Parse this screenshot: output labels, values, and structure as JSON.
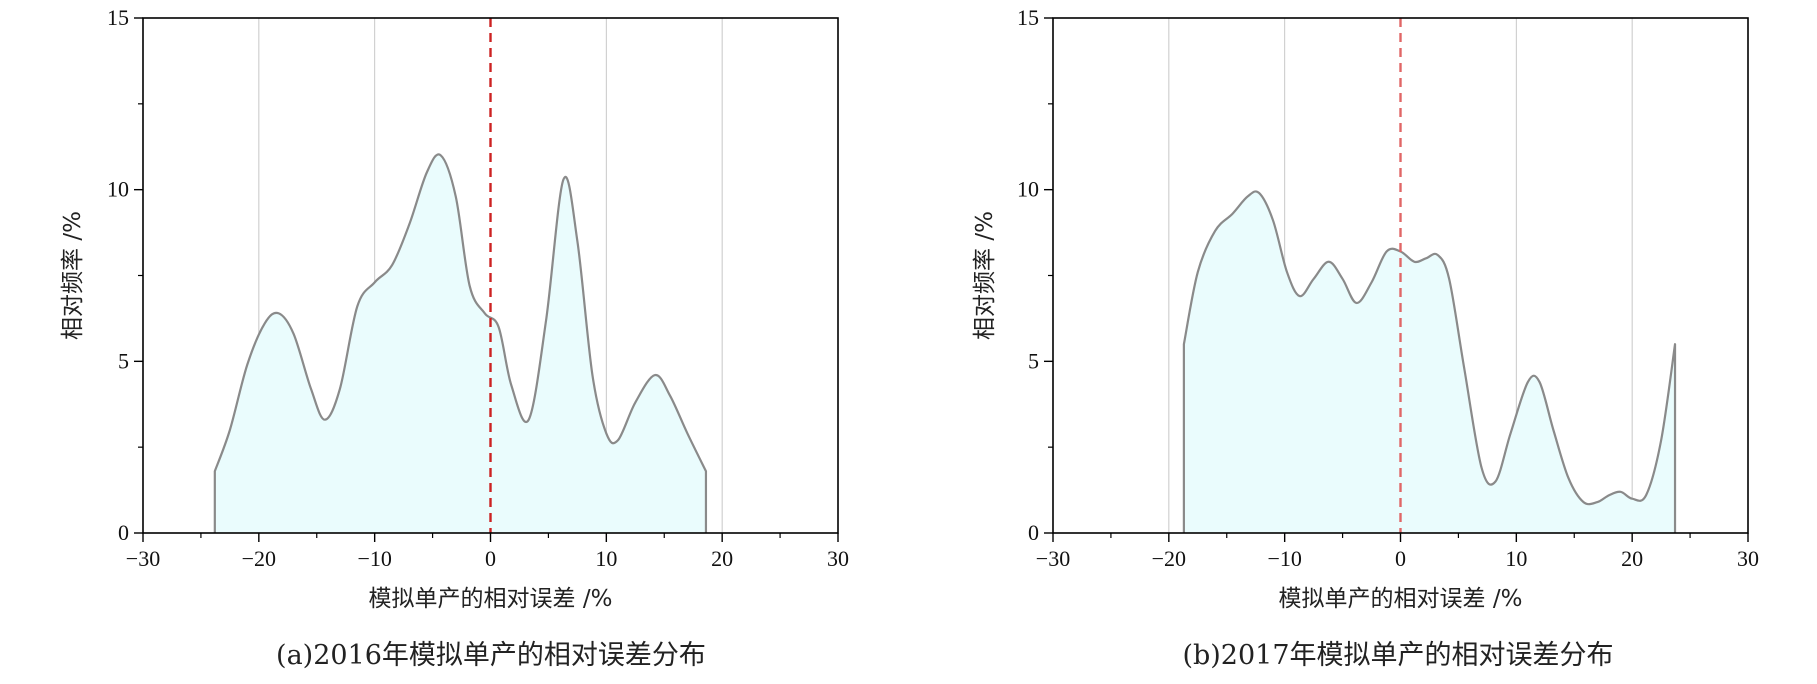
{
  "chart_data": [
    {
      "type": "area",
      "caption": "(a)2016年模拟单产的相对误差分布",
      "xlabel": "模拟单产的相对误差 /%",
      "ylabel": "相对频率 /%",
      "xlim": [
        -30,
        30
      ],
      "ylim": [
        0,
        15
      ],
      "xticks": [
        "−30",
        "−20",
        "−10",
        "0",
        "10",
        "20",
        "30"
      ],
      "yticks": [
        "0",
        "5",
        "10",
        "15"
      ],
      "grid": "vertical",
      "reference_line_x": 0,
      "fill_color": "#eafcfd",
      "line_color": "#8a8a8a",
      "reference_line_color": "#cc2222",
      "x": [
        -23.8,
        -22.5,
        -21,
        -19.5,
        -18.3,
        -17,
        -15.5,
        -14.3,
        -13,
        -11.5,
        -10,
        -8.5,
        -7,
        -5.5,
        -4.3,
        -3,
        -1.8,
        -0.5,
        0.7,
        1.8,
        3.3,
        4.8,
        6.3,
        7.5,
        8.8,
        10,
        11,
        12.5,
        14.2,
        15.5,
        17,
        18.6
      ],
      "y": [
        1.8,
        3.0,
        4.9,
        6.1,
        6.4,
        5.8,
        4.2,
        3.3,
        4.2,
        6.6,
        7.3,
        7.8,
        9.0,
        10.5,
        11.0,
        9.8,
        7.2,
        6.4,
        6.0,
        4.3,
        3.3,
        6.2,
        10.3,
        8.5,
        4.6,
        2.9,
        2.7,
        3.8,
        4.6,
        4.0,
        2.9,
        1.8
      ]
    },
    {
      "type": "area",
      "caption": "(b)2017年模拟单产的相对误差分布",
      "xlabel": "模拟单产的相对误差 /%",
      "ylabel": "相对频率 /%",
      "xlim": [
        -30,
        30
      ],
      "ylim": [
        0,
        15
      ],
      "xticks": [
        "−30",
        "−20",
        "−10",
        "0",
        "10",
        "20",
        "30"
      ],
      "yticks": [
        "0",
        "5",
        "10",
        "15"
      ],
      "grid": "vertical",
      "reference_line_x": 0,
      "fill_color": "#eafcfd",
      "line_color": "#8a8a8a",
      "reference_line_color": "#e06666",
      "x": [
        -18.7,
        -17.5,
        -16,
        -14.5,
        -13.2,
        -12.2,
        -11,
        -9.8,
        -8.7,
        -7.5,
        -6.2,
        -5,
        -3.8,
        -2.5,
        -1.2,
        0,
        1.2,
        2.2,
        3.2,
        4.2,
        5.5,
        7,
        8.2,
        9.5,
        11,
        12,
        13.2,
        14.5,
        15.8,
        17,
        18,
        19,
        20,
        21.2,
        22.5,
        23.7
      ],
      "y": [
        5.5,
        7.6,
        8.8,
        9.3,
        9.8,
        9.9,
        9.1,
        7.6,
        6.9,
        7.4,
        7.9,
        7.4,
        6.7,
        7.3,
        8.2,
        8.2,
        7.9,
        8.0,
        8.1,
        7.4,
        4.8,
        1.9,
        1.5,
        2.9,
        4.4,
        4.4,
        3.0,
        1.6,
        0.9,
        0.9,
        1.1,
        1.2,
        1.0,
        1.1,
        2.7,
        5.5
      ]
    }
  ]
}
